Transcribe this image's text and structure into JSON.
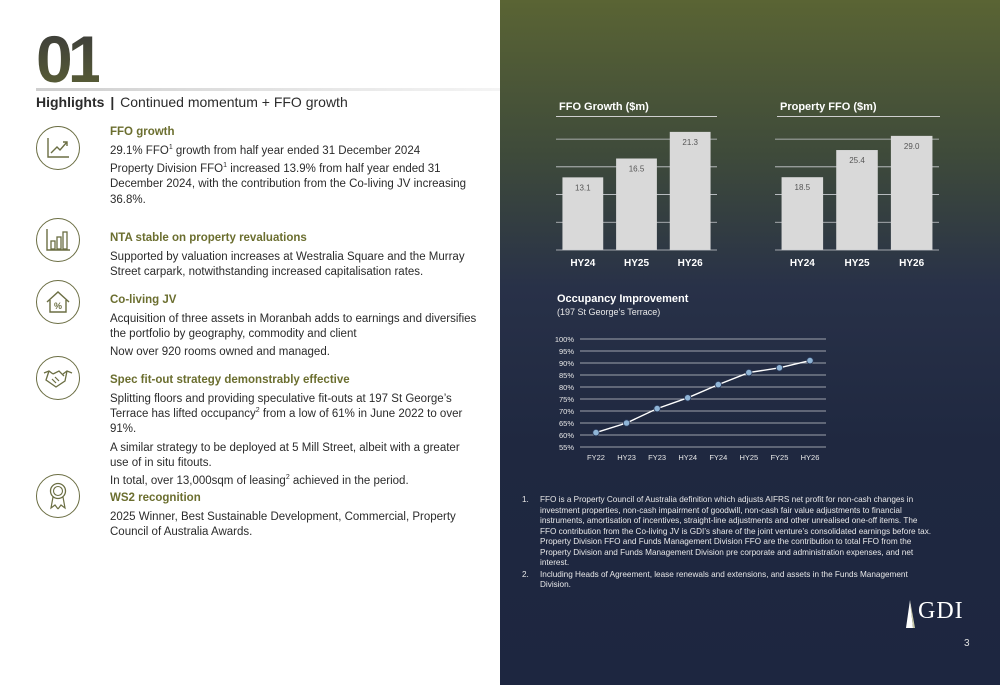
{
  "section_number": "01",
  "header": {
    "title_bold": "Highlights",
    "separator": "|",
    "title_rest": "Continued momentum + FFO growth"
  },
  "highlights": [
    {
      "icon": "growth-chart-icon",
      "heading": "FFO growth",
      "paragraphs": [
        [
          "29.1% FFO",
          "1",
          " growth from half year ended 31 December 2024"
        ],
        [
          "Property Division FFO",
          "1",
          " increased 13.9% from half year ended 31 December 2024, with the contribution from the Co-living JV increasing 36.8%."
        ]
      ]
    },
    {
      "icon": "bar-chart-icon",
      "heading": "NTA stable on property revaluations",
      "paragraphs": [
        [
          "Supported by valuation increases at Westralia Square and the Murray Street carpark, notwithstanding increased capitalisation rates.",
          "",
          ""
        ]
      ]
    },
    {
      "icon": "house-percent-icon",
      "heading": "Co-living JV",
      "paragraphs": [
        [
          "Acquisition of three assets in Moranbah adds to earnings and diversifies the portfolio by geography, commodity and client",
          "",
          ""
        ],
        [
          "Now over 920 rooms owned and managed.",
          "",
          ""
        ]
      ]
    },
    {
      "icon": "handshake-icon",
      "heading": "Spec fit-out strategy demonstrably effective",
      "paragraphs": [
        [
          "Splitting floors and providing speculative fit-outs at 197 St George’s Terrace has lifted occupancy",
          "2",
          " from a low of 61% in June 2022 to over 91%."
        ],
        [
          "A similar strategy to be deployed at 5 Mill Street, albeit with a greater use of in situ fitouts.",
          "",
          ""
        ],
        [
          "In total, over 13,000sqm of leasing",
          "2",
          " achieved in the period."
        ]
      ]
    },
    {
      "icon": "award-ribbon-icon",
      "heading": "WS2 recognition",
      "paragraphs": [
        [
          "2025 Winner, Best Sustainable Development, Commercial, Property Council of Australia Awards.",
          "",
          ""
        ]
      ]
    }
  ],
  "chart_data": [
    {
      "type": "bar",
      "title": "FFO Growth ($m)",
      "categories": [
        "HY24",
        "HY25",
        "HY26"
      ],
      "values": [
        13.1,
        16.5,
        21.3
      ],
      "ylim": [
        0,
        22
      ],
      "grid": true,
      "bar_color": "#d9d9d9"
    },
    {
      "type": "bar",
      "title": "Property FFO ($m)",
      "categories": [
        "HY24",
        "HY25",
        "HY26"
      ],
      "values": [
        18.5,
        25.4,
        29.0
      ],
      "ylim": [
        0,
        31
      ],
      "grid": true,
      "bar_color": "#d9d9d9"
    },
    {
      "type": "line",
      "title": "Occupancy Improvement",
      "subtitle": "(197 St George’s Terrace)",
      "x": [
        "FY22",
        "HY23",
        "FY23",
        "HY24",
        "FY24",
        "HY25",
        "FY25",
        "HY26"
      ],
      "yticks": [
        "100%",
        "95%",
        "90%",
        "85%",
        "80%",
        "75%",
        "70%",
        "65%",
        "60%",
        "55%"
      ],
      "ylim": [
        55,
        100
      ],
      "series": [
        {
          "values": [
            61,
            65,
            71,
            75.5,
            81,
            86,
            88,
            91
          ]
        }
      ],
      "line_color": "#ffffff",
      "marker_color": "#8fb4d6",
      "grid": true
    }
  ],
  "footnotes": [
    {
      "num": "1.",
      "text": "FFO is a Property Council of Australia definition which adjusts AIFRS net profit for non-cash changes in investment properties, non-cash impairment of goodwill, non-cash fair value adjustments to financial instruments, amortisation of incentives, straight-line adjustments and other unrealised one-off items. The FFO contribution from the Co-living JV is GDI’s share of the joint venture’s consolidated earnings before tax. Property Division FFO and Funds Management Division FFO are the contribution to total FFO from the Property Division and Funds Management Division pre corporate and administration expenses, and net interest."
    },
    {
      "num": "2.",
      "text": "Including Heads of Agreement, lease renewals and extensions, and assets in the Funds Management Division."
    }
  ],
  "logo_text": "GDI",
  "page_number": "3"
}
